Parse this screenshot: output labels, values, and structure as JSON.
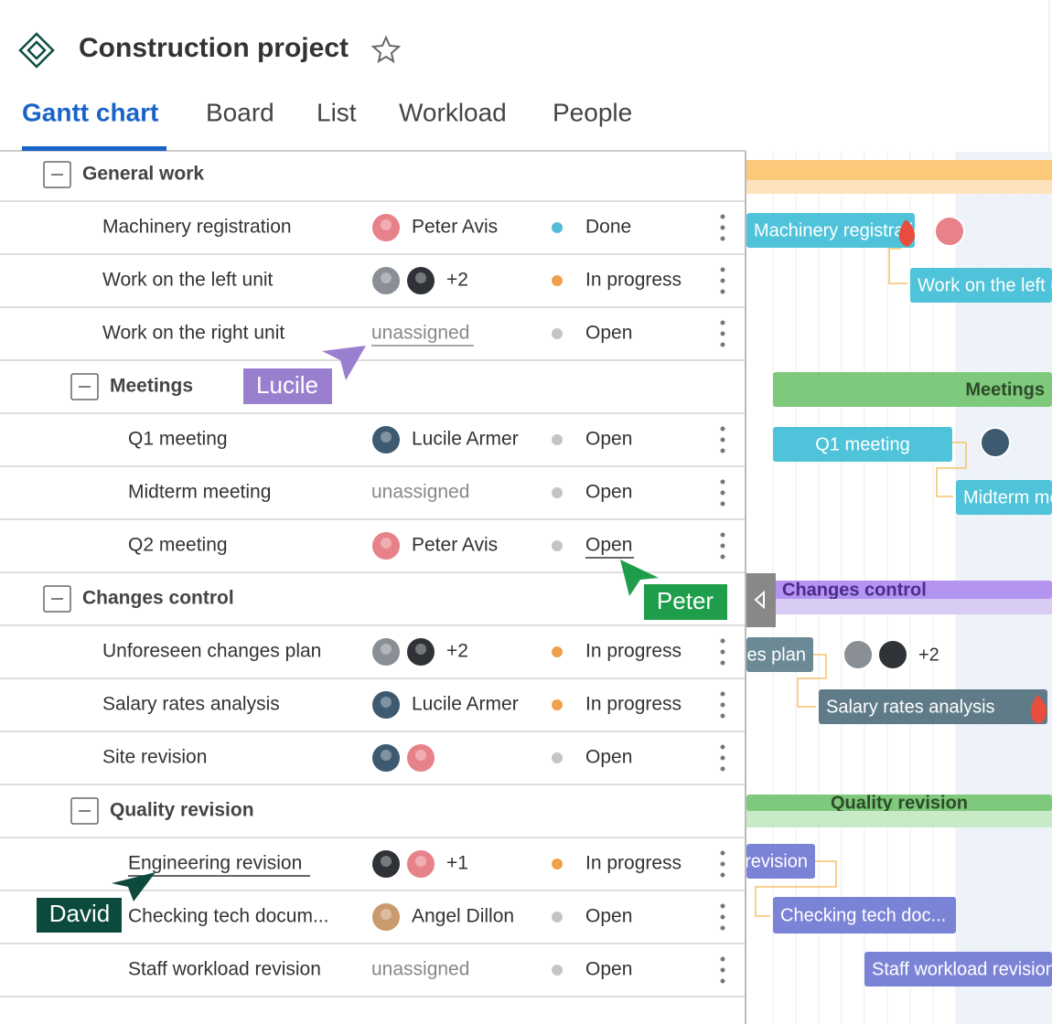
{
  "header": {
    "title": "Construction project"
  },
  "tabs": [
    "Gantt chart",
    "Board",
    "List",
    "Workload",
    "People"
  ],
  "groups": [
    {
      "name": "General work",
      "tasks": [
        {
          "name": "Machinery registration",
          "assignee": "Peter Avis",
          "status": "Done"
        },
        {
          "name": "Work on the left unit",
          "assignee": "+2",
          "status": "In progress"
        },
        {
          "name": "Work on the right unit",
          "assignee": "unassigned",
          "status": "Open"
        }
      ],
      "subgroup": {
        "name": "Meetings",
        "tasks": [
          {
            "name": "Q1 meeting",
            "assignee": "Lucile Armer",
            "status": "Open"
          },
          {
            "name": "Midterm meeting",
            "assignee": "unassigned",
            "status": "Open"
          },
          {
            "name": "Q2 meeting",
            "assignee": "Peter Avis",
            "status": "Open"
          }
        ]
      }
    },
    {
      "name": "Changes control",
      "tasks": [
        {
          "name": "Unforeseen changes plan",
          "assignee": "+2",
          "status": "In progress"
        },
        {
          "name": "Salary rates analysis",
          "assignee": "Lucile Armer",
          "status": "In progress"
        },
        {
          "name": "Site revision",
          "status": "Open"
        }
      ],
      "subgroup": {
        "name": "Quality revision",
        "tasks": [
          {
            "name": "Engineering revision",
            "assignee": "+1",
            "status": "In progress"
          },
          {
            "name": "Checking tech docum...",
            "gantt_label": "Checking tech doc...",
            "assignee": "Angel Dillon",
            "status": "Open"
          },
          {
            "name": "Staff workload revision",
            "assignee": "unassigned",
            "status": "Open"
          }
        ]
      }
    }
  ],
  "cursors": [
    "Lucile",
    "Peter",
    "David"
  ]
}
